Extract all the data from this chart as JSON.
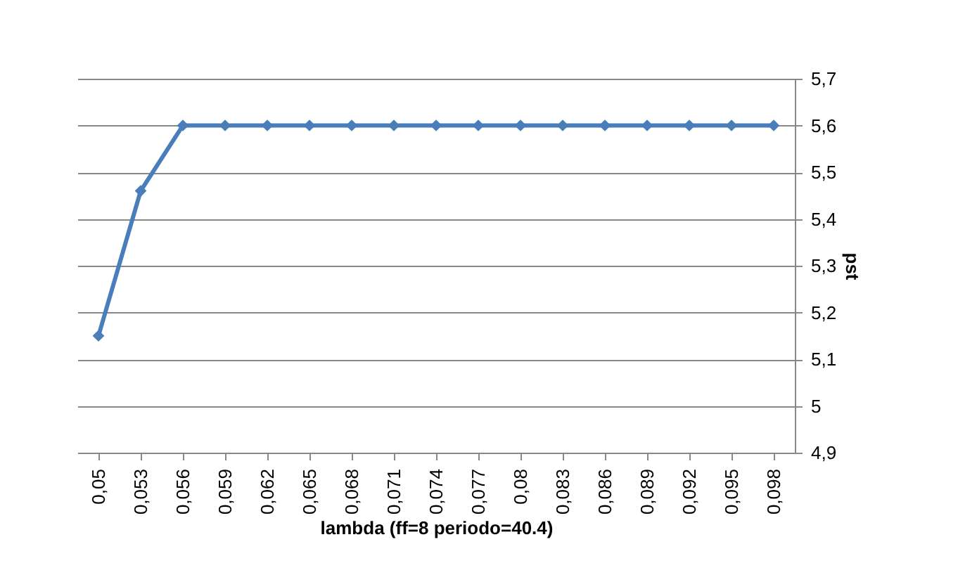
{
  "chart_data": {
    "type": "line",
    "xlabel": "lambda (ff=8  periodo=40.4)",
    "ylabel": "pst",
    "categories": [
      "0,05",
      "0,053",
      "0,056",
      "0,059",
      "0,062",
      "0,065",
      "0,068",
      "0,071",
      "0,074",
      "0,077",
      "0,08",
      "0,083",
      "0,086",
      "0,089",
      "0,092",
      "0,095",
      "0,098"
    ],
    "series": [
      {
        "color": "#4a7ebb",
        "values": [
          5.15,
          5.46,
          5.6,
          5.6,
          5.6,
          5.6,
          5.6,
          5.6,
          5.6,
          5.6,
          5.6,
          5.6,
          5.6,
          5.6,
          5.6,
          5.6,
          5.6
        ]
      }
    ],
    "ylim": [
      4.9,
      5.7
    ],
    "yticks": [
      {
        "value": 4.9,
        "label": "4,9"
      },
      {
        "value": 5,
        "label": "5"
      },
      {
        "value": 5.1,
        "label": "5,1"
      },
      {
        "value": 5.2,
        "label": "5,2"
      },
      {
        "value": 5.3,
        "label": "5,3"
      },
      {
        "value": 5.4,
        "label": "5,4"
      },
      {
        "value": 5.5,
        "label": "5,5"
      },
      {
        "value": 5.6,
        "label": "5,6"
      },
      {
        "value": 5.7,
        "label": "5,7"
      }
    ],
    "grid": "y",
    "marker": "diamond",
    "line_style": "solid"
  }
}
